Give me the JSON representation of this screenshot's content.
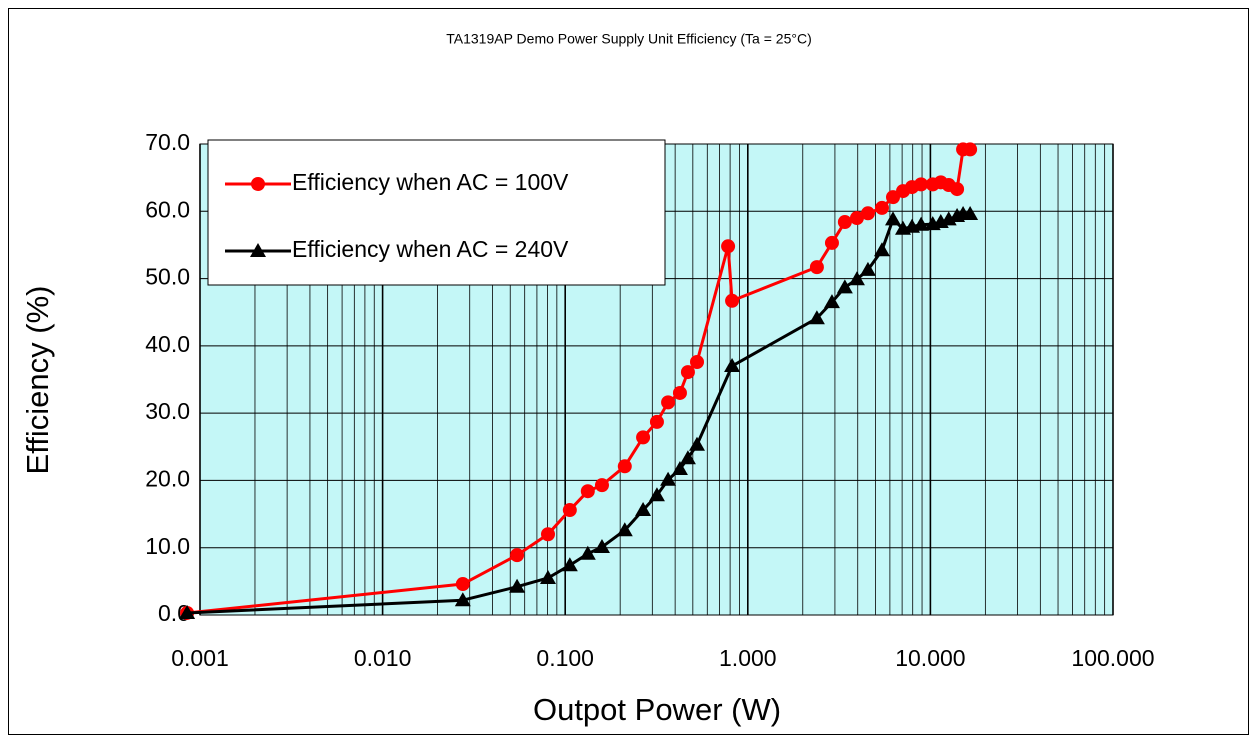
{
  "chart_data": {
    "type": "line",
    "title": "TA1319AP Demo Power Supply Unit Efficiency (Ta = 25°C)",
    "x_label": "Outpot Power (W)",
    "y_label": "Efficiency (%)",
    "x_scale": "log",
    "grid": true,
    "legend": "upper left",
    "background": "#c4f7f7",
    "xlim": [
      0.001,
      100
    ],
    "xticks": [
      0.001,
      {
        "value": 0.01,
        "label": "0.010"
      },
      {
        "value": 0.1,
        "label": "0.100"
      },
      {
        "value": 1,
        "label": "1.000"
      },
      {
        "value": 10,
        "label": "10.000"
      },
      {
        "value": 100,
        "label": "100.000"
      }
    ],
    "ylim": [
      0,
      70
    ],
    "yticks": [
      {
        "value": 0,
        "label": "0.0"
      },
      {
        "value": 10,
        "label": "10.0"
      },
      {
        "value": 20,
        "label": "20.0"
      },
      {
        "value": 30,
        "label": "30.0"
      },
      {
        "value": 40,
        "label": "40.0"
      },
      {
        "value": 50,
        "label": "50.0"
      },
      {
        "value": 60,
        "label": "60.0"
      },
      {
        "value": 70,
        "label": "70.0"
      }
    ],
    "series": [
      {
        "name": "Efficiency when AC = 100V",
        "color": "#ff0000",
        "marker": "circle",
        "x": [
          0.00085,
          0.0275,
          0.0545,
          0.0805,
          0.106,
          0.133,
          0.159,
          0.212,
          0.267,
          0.318,
          0.366,
          0.425,
          0.47,
          0.527,
          0.78,
          0.82,
          2.39,
          2.89,
          3.4,
          3.96,
          4.55,
          5.43,
          6.24,
          7.08,
          7.93,
          8.89,
          10.3,
          11.4,
          12.6,
          14.0,
          15.1,
          16.5
        ],
        "values": [
          0.3,
          4.6,
          8.9,
          12.0,
          15.6,
          18.4,
          19.3,
          22.1,
          26.4,
          28.7,
          31.6,
          33.0,
          36.1,
          37.6,
          54.8,
          46.7,
          51.7,
          55.3,
          58.4,
          59.0,
          59.7,
          60.5,
          62.1,
          63.0,
          63.6,
          64.0,
          64.0,
          64.3,
          63.9,
          63.3,
          69.2,
          69.2
        ]
      },
      {
        "name": "Efficiency when AC = 240V",
        "color": "#000000",
        "marker": "triangle",
        "x": [
          0.00085,
          0.0275,
          0.0545,
          0.0805,
          0.106,
          0.133,
          0.159,
          0.212,
          0.267,
          0.318,
          0.366,
          0.425,
          0.47,
          0.527,
          0.82,
          2.39,
          2.89,
          3.4,
          3.96,
          4.55,
          5.43,
          6.24,
          7.08,
          7.93,
          8.89,
          10.3,
          11.4,
          12.6,
          14.0,
          15.1,
          16.5
        ],
        "values": [
          0.3,
          2.2,
          4.2,
          5.5,
          7.4,
          9.1,
          10.1,
          12.6,
          15.6,
          17.8,
          20.1,
          21.7,
          23.3,
          25.3,
          37.0,
          44.1,
          46.5,
          48.7,
          49.9,
          51.3,
          54.2,
          58.8,
          57.4,
          57.7,
          58.0,
          58.1,
          58.4,
          58.8,
          59.3,
          59.6,
          59.6
        ]
      }
    ]
  }
}
